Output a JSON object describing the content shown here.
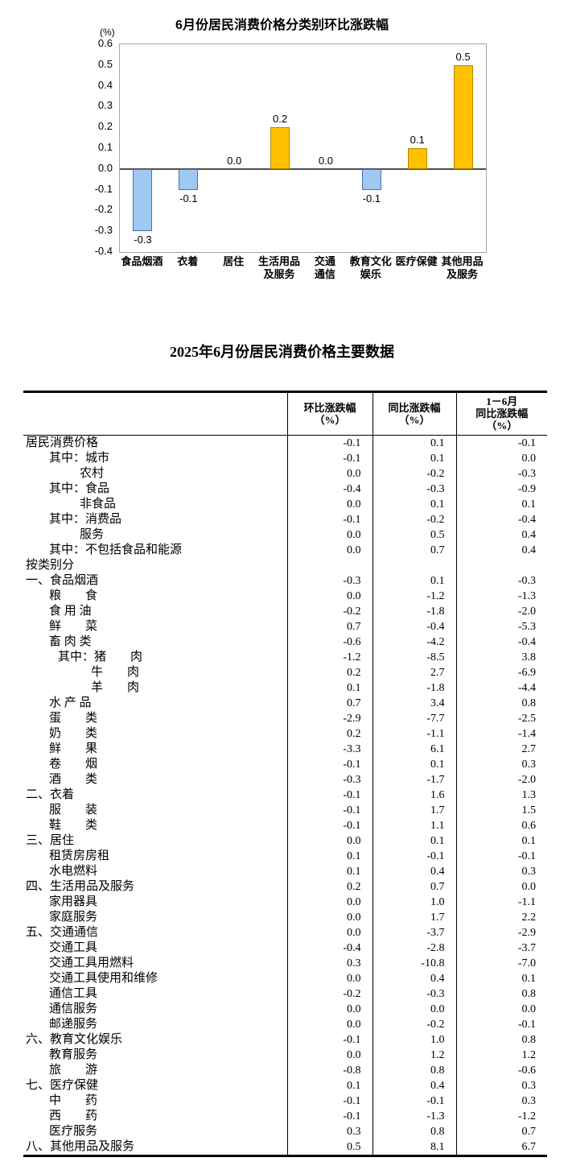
{
  "chart_data": {
    "type": "bar",
    "title": "6月份居民消费价格分类别环比涨跌幅",
    "unit_label": "(%)",
    "categories": [
      "食品烟酒",
      "衣着",
      "居住",
      "生活用品及服务",
      "交通通信",
      "教育文化娱乐",
      "医疗保健",
      "其他用品及服务"
    ],
    "category_lines": [
      [
        "食品烟酒"
      ],
      [
        "衣着"
      ],
      [
        "居住"
      ],
      [
        "生活用品",
        "及服务"
      ],
      [
        "交通",
        "通信"
      ],
      [
        "教育文化",
        "娱乐"
      ],
      [
        "医疗保健"
      ],
      [
        "其他用品",
        "及服务"
      ]
    ],
    "values": [
      -0.3,
      -0.1,
      0.0,
      0.2,
      0.0,
      -0.1,
      0.1,
      0.5
    ],
    "labels": [
      "-0.3",
      "-0.1",
      "0.0",
      "0.2",
      "0.0",
      "-0.1",
      "0.1",
      "0.5"
    ],
    "ylim": [
      -0.4,
      0.6
    ],
    "yticks": [
      "0.6",
      "0.5",
      "0.4",
      "0.3",
      "0.2",
      "0.1",
      "0.0",
      "-0.1",
      "-0.2",
      "-0.3",
      "-0.4"
    ],
    "grid": false,
    "legend": "none",
    "colors": {
      "positive_fill": "#FFC000",
      "positive_border": "#B38600",
      "negative_fill": "#9DC9F2",
      "negative_border": "#4472A4",
      "frame": "#A6A6A6",
      "zero_line": "#4d4d4d"
    }
  },
  "table": {
    "title": "2025年6月份居民消费价格主要数据",
    "column_headers": [
      {
        "lines": [
          "环比涨跌幅",
          "（%）"
        ]
      },
      {
        "lines": [
          "同比涨跌幅",
          "（%）"
        ]
      },
      {
        "lines": [
          "1－6月",
          "同比涨跌幅",
          "（%）"
        ]
      }
    ],
    "rows": [
      {
        "label": "居民消费价格",
        "indent": 0,
        "values": [
          "-0.1",
          "0.1",
          "-0.1"
        ]
      },
      {
        "label": "其中：城市",
        "indent": 1,
        "values": [
          "-0.1",
          "0.1",
          "0.0"
        ]
      },
      {
        "label": "农村",
        "indent": 2,
        "values": [
          "0.0",
          "-0.2",
          "-0.3"
        ]
      },
      {
        "label": "其中：食品",
        "indent": 1,
        "values": [
          "-0.4",
          "-0.3",
          "-0.9"
        ]
      },
      {
        "label": "非食品",
        "indent": 2,
        "values": [
          "0.0",
          "0.1",
          "0.1"
        ]
      },
      {
        "label": "其中：消费品",
        "indent": 1,
        "values": [
          "-0.1",
          "-0.2",
          "-0.4"
        ]
      },
      {
        "label": "服务",
        "indent": 2,
        "values": [
          "0.0",
          "0.5",
          "0.4"
        ]
      },
      {
        "label": "其中：不包括食品和能源",
        "indent": 1,
        "values": [
          "0.0",
          "0.7",
          "0.4"
        ]
      },
      {
        "label": "按类别分",
        "indent": 0,
        "values": [
          "",
          "",
          ""
        ]
      },
      {
        "label": "一、食品烟酒",
        "indent": 0,
        "values": [
          "-0.3",
          "0.1",
          "-0.3"
        ]
      },
      {
        "label": "粮　　食",
        "indent": 1,
        "values": [
          "0.0",
          "-1.2",
          "-1.3"
        ]
      },
      {
        "label": "食 用 油",
        "indent": 1,
        "values": [
          "-0.2",
          "-1.8",
          "-2.0"
        ]
      },
      {
        "label": "鲜　　菜",
        "indent": 1,
        "values": [
          "0.7",
          "-0.4",
          "-5.3"
        ]
      },
      {
        "label": "畜 肉 类",
        "indent": 1,
        "values": [
          "-0.6",
          "-4.2",
          "-0.4"
        ]
      },
      {
        "label": "其中：猪　　肉",
        "indent": 3,
        "values": [
          "-1.2",
          "-8.5",
          "3.8"
        ]
      },
      {
        "label": "牛　　肉",
        "indent": 4,
        "values": [
          "0.2",
          "2.7",
          "-6.9"
        ]
      },
      {
        "label": "羊　　肉",
        "indent": 4,
        "values": [
          "0.1",
          "-1.8",
          "-4.4"
        ]
      },
      {
        "label": "水 产 品",
        "indent": 1,
        "values": [
          "0.7",
          "3.4",
          "0.8"
        ]
      },
      {
        "label": "蛋　　类",
        "indent": 1,
        "values": [
          "-2.9",
          "-7.7",
          "-2.5"
        ]
      },
      {
        "label": "奶　　类",
        "indent": 1,
        "values": [
          "0.2",
          "-1.1",
          "-1.4"
        ]
      },
      {
        "label": "鲜　　果",
        "indent": 1,
        "values": [
          "-3.3",
          "6.1",
          "2.7"
        ]
      },
      {
        "label": "卷　　烟",
        "indent": 1,
        "values": [
          "-0.1",
          "0.1",
          "0.3"
        ]
      },
      {
        "label": "酒　　类",
        "indent": 1,
        "values": [
          "-0.3",
          "-1.7",
          "-2.0"
        ]
      },
      {
        "label": "二、衣着",
        "indent": 0,
        "values": [
          "-0.1",
          "1.6",
          "1.3"
        ]
      },
      {
        "label": "服　　装",
        "indent": 1,
        "values": [
          "-0.1",
          "1.7",
          "1.5"
        ]
      },
      {
        "label": "鞋　　类",
        "indent": 1,
        "values": [
          "-0.1",
          "1.1",
          "0.6"
        ]
      },
      {
        "label": "三、居住",
        "indent": 0,
        "values": [
          "0.0",
          "0.1",
          "0.1"
        ]
      },
      {
        "label": "租赁房房租",
        "indent": 1,
        "values": [
          "0.1",
          "-0.1",
          "-0.1"
        ]
      },
      {
        "label": "水电燃料",
        "indent": 1,
        "values": [
          "0.1",
          "0.4",
          "0.3"
        ]
      },
      {
        "label": "四、生活用品及服务",
        "indent": 0,
        "values": [
          "0.2",
          "0.7",
          "0.0"
        ]
      },
      {
        "label": "家用器具",
        "indent": 1,
        "values": [
          "0.0",
          "1.0",
          "-1.1"
        ]
      },
      {
        "label": "家庭服务",
        "indent": 1,
        "values": [
          "0.0",
          "1.7",
          "2.2"
        ]
      },
      {
        "label": "五、交通通信",
        "indent": 0,
        "values": [
          "0.0",
          "-3.7",
          "-2.9"
        ]
      },
      {
        "label": "交通工具",
        "indent": 1,
        "values": [
          "-0.4",
          "-2.8",
          "-3.7"
        ]
      },
      {
        "label": "交通工具用燃料",
        "indent": 1,
        "values": [
          "0.3",
          "-10.8",
          "-7.0"
        ]
      },
      {
        "label": "交通工具使用和维修",
        "indent": 1,
        "values": [
          "0.0",
          "0.4",
          "0.1"
        ]
      },
      {
        "label": "通信工具",
        "indent": 1,
        "values": [
          "-0.2",
          "-0.3",
          "0.8"
        ]
      },
      {
        "label": "通信服务",
        "indent": 1,
        "values": [
          "0.0",
          "0.0",
          "0.0"
        ]
      },
      {
        "label": "邮递服务",
        "indent": 1,
        "values": [
          "0.0",
          "-0.2",
          "-0.1"
        ]
      },
      {
        "label": "六、教育文化娱乐",
        "indent": 0,
        "values": [
          "-0.1",
          "1.0",
          "0.8"
        ]
      },
      {
        "label": "教育服务",
        "indent": 1,
        "values": [
          "0.0",
          "1.2",
          "1.2"
        ]
      },
      {
        "label": "旅　　游",
        "indent": 1,
        "values": [
          "-0.8",
          "0.8",
          "-0.6"
        ]
      },
      {
        "label": "七、医疗保健",
        "indent": 0,
        "values": [
          "0.1",
          "0.4",
          "0.3"
        ]
      },
      {
        "label": "中　　药",
        "indent": 1,
        "values": [
          "-0.1",
          "-0.1",
          "0.3"
        ]
      },
      {
        "label": "西　　药",
        "indent": 1,
        "values": [
          "-0.1",
          "-1.3",
          "-1.2"
        ]
      },
      {
        "label": "医疗服务",
        "indent": 1,
        "values": [
          "0.3",
          "0.8",
          "0.7"
        ]
      },
      {
        "label": "八、其他用品及服务",
        "indent": 0,
        "values": [
          "0.5",
          "8.1",
          "6.7"
        ]
      }
    ]
  }
}
